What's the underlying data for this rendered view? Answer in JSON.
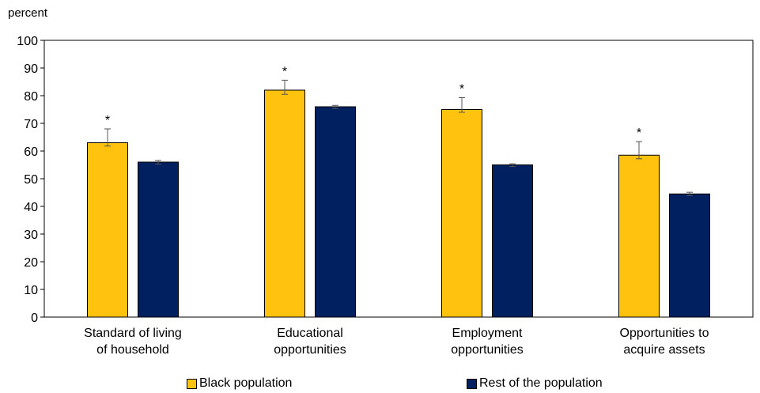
{
  "chart_data": {
    "type": "bar",
    "ylabel": "percent",
    "ylim": [
      0,
      100
    ],
    "yticks": [
      0,
      10,
      20,
      30,
      40,
      50,
      60,
      70,
      80,
      90,
      100
    ],
    "categories": [
      [
        "Standard of living",
        "of household"
      ],
      [
        "Educational",
        "opportunities"
      ],
      [
        "Employment",
        "opportunities"
      ],
      [
        "Opportunities to",
        "acquire assets"
      ]
    ],
    "series": [
      {
        "name": "Black population",
        "color": "#FFC20E",
        "values": [
          63,
          82,
          75,
          58.5
        ],
        "error_low": [
          61.8,
          80.5,
          74,
          57.2
        ],
        "error_high": [
          68,
          85.6,
          79.3,
          63.4
        ],
        "significance_marker": [
          "*",
          "*",
          "*",
          "*"
        ]
      },
      {
        "name": "Rest of the population",
        "color": "#002060",
        "values": [
          56,
          76,
          55,
          44.5
        ],
        "error_low": [
          55.3,
          75.4,
          54.4,
          43.9
        ],
        "error_high": [
          56.6,
          76.5,
          55.4,
          45.1
        ],
        "significance_marker": [
          "",
          "",
          "",
          ""
        ]
      }
    ],
    "grid": false,
    "legend_position": "bottom"
  }
}
